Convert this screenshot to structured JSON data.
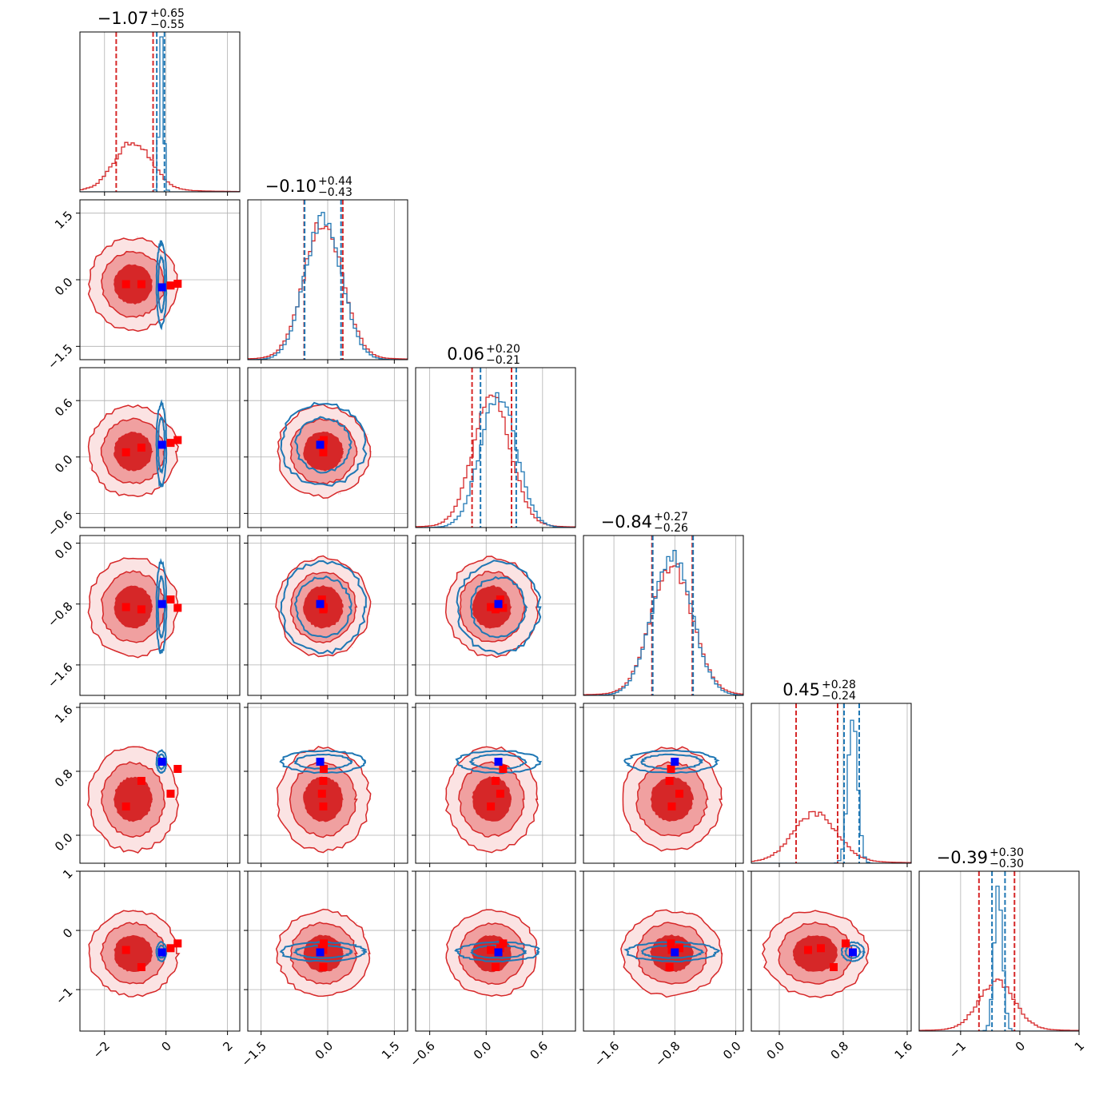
{
  "chart_data": {
    "type": "corner",
    "n_params": 6,
    "colors": {
      "samples_a": "#d62728",
      "samples_b": "#1f77b4",
      "marker_a": "#ff0000",
      "marker_b": "#0000ff",
      "fill_levels": [
        "#fbe3e3",
        "#f0a0a0",
        "#d62728"
      ]
    },
    "grid": true,
    "params": [
      {
        "title_main": "−1.07",
        "title_plus": "+0.65",
        "title_minus": "−0.55",
        "range": [
          -2.8,
          2.4
        ],
        "ticks": [
          -2,
          0,
          2
        ],
        "tick_labels": [
          "−2",
          "0",
          "2"
        ],
        "truth": 0,
        "quantiles_a": [
          -1.62,
          -0.42
        ],
        "quantiles_b": [
          -0.3,
          -0.05
        ],
        "hist_a": {
          "mean": -1.07,
          "sd": 0.6,
          "h": 0.3
        },
        "hist_b": {
          "mean": -0.15,
          "sd": 0.07,
          "h": 0.96
        }
      },
      {
        "title_main": "−0.10",
        "title_plus": "+0.44",
        "title_minus": "−0.43",
        "range": [
          -1.8,
          1.8
        ],
        "ticks": [
          -1.5,
          0.0,
          1.5
        ],
        "tick_labels": [
          "−1.5",
          "0.0",
          "1.5"
        ],
        "truth": 0,
        "quantiles_a": [
          -0.53,
          0.34
        ],
        "quantiles_b": [
          -0.52,
          0.3
        ],
        "hist_a": {
          "mean": -0.1,
          "sd": 0.43,
          "h": 0.85
        },
        "hist_b": {
          "mean": -0.1,
          "sd": 0.41,
          "h": 0.88
        }
      },
      {
        "title_main": "0.06",
        "title_plus": "+0.20",
        "title_minus": "−0.21",
        "range": [
          -0.75,
          0.95
        ],
        "ticks": [
          -0.6,
          0.0,
          0.6
        ],
        "tick_labels": [
          "−0.6",
          "0.0",
          "0.6"
        ],
        "truth": 0,
        "quantiles_a": [
          -0.15,
          0.27
        ],
        "quantiles_b": [
          -0.06,
          0.32
        ],
        "hist_a": {
          "mean": 0.06,
          "sd": 0.2,
          "h": 0.8
        },
        "hist_b": {
          "mean": 0.13,
          "sd": 0.19,
          "h": 0.84
        }
      },
      {
        "title_main": "−0.84",
        "title_plus": "+0.27",
        "title_minus": "−0.26",
        "range": [
          -2.0,
          0.1
        ],
        "ticks": [
          -1.6,
          -0.8,
          0.0
        ],
        "tick_labels": [
          "−1.6",
          "−0.8",
          "0.0"
        ],
        "truth": -0.8,
        "quantiles_a": [
          -1.1,
          -0.57
        ],
        "quantiles_b": [
          -1.09,
          -0.56
        ],
        "hist_a": {
          "mean": -0.84,
          "sd": 0.27,
          "h": 0.8
        },
        "hist_b": {
          "mean": -0.84,
          "sd": 0.26,
          "h": 0.88
        }
      },
      {
        "title_main": "0.45",
        "title_plus": "+0.28",
        "title_minus": "−0.24",
        "range": [
          -0.35,
          1.65
        ],
        "ticks": [
          0.0,
          0.8,
          1.6
        ],
        "tick_labels": [
          "0.0",
          "0.8",
          "1.6"
        ],
        "truth": 0.8,
        "quantiles_a": [
          0.21,
          0.73
        ],
        "quantiles_b": [
          0.81,
          1.0
        ],
        "hist_a": {
          "mean": 0.45,
          "sd": 0.27,
          "h": 0.3
        },
        "hist_b": {
          "mean": 0.92,
          "sd": 0.06,
          "h": 0.92
        }
      },
      {
        "title_main": "−0.39",
        "title_plus": "+0.30",
        "title_minus": "−0.30",
        "range": [
          -1.7,
          1.0
        ],
        "ticks": [
          -1,
          0,
          1
        ],
        "tick_labels": [
          "−1",
          "0",
          "1"
        ],
        "truth": 0,
        "quantiles_a": [
          -0.69,
          -0.09
        ],
        "quantiles_b": [
          -0.47,
          -0.25
        ],
        "hist_a": {
          "mean": -0.39,
          "sd": 0.3,
          "h": 0.3
        },
        "hist_b": {
          "mean": -0.36,
          "sd": 0.07,
          "h": 0.92
        }
      }
    ],
    "markers_a": [
      [
        -1.3,
        -0.1,
        0.05,
        -0.84,
        0.36,
        -0.33
      ],
      [
        -0.8,
        -0.1,
        0.1,
        -0.87,
        0.68,
        -0.62
      ],
      [
        0.15,
        -0.13,
        0.15,
        -0.74,
        0.52,
        -0.3
      ],
      [
        0.38,
        -0.09,
        0.18,
        -0.85,
        0.83,
        -0.22
      ]
    ],
    "markers_b": [
      [
        -0.13,
        -0.17,
        0.13,
        -0.8,
        0.92,
        -0.37
      ]
    ]
  }
}
